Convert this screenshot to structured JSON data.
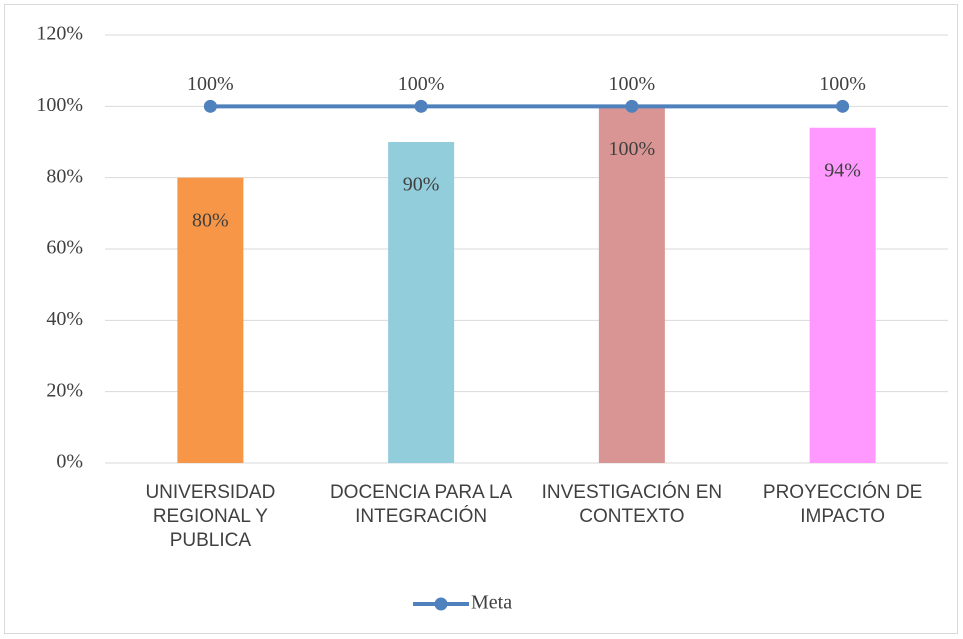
{
  "chart_data": {
    "type": "bar",
    "categories": [
      "UNIVERSIDAD REGIONAL Y PUBLICA",
      "DOCENCIA PARA LA INTEGRACIÓN",
      "INVESTIGACIÓN EN CONTEXTO",
      "PROYECCIÓN DE IMPACTO"
    ],
    "series": [
      {
        "type": "bar",
        "colors": [
          "#f79646",
          "#92cddc",
          "#d99594",
          "#ff99ff"
        ],
        "values": [
          80,
          90,
          100,
          94
        ],
        "value_labels": [
          "80%",
          "90%",
          "100%",
          "94%"
        ]
      },
      {
        "type": "line",
        "name": "Meta",
        "color": "#4f81bd",
        "values": [
          100,
          100,
          100,
          100
        ],
        "value_labels": [
          "100%",
          "100%",
          "100%",
          "100%"
        ]
      }
    ],
    "ylim": [
      0,
      120
    ],
    "yticks": [
      {
        "value": 0,
        "label": "0%"
      },
      {
        "value": 20,
        "label": "20%"
      },
      {
        "value": 40,
        "label": "40%"
      },
      {
        "value": 60,
        "label": "60%"
      },
      {
        "value": 80,
        "label": "80%"
      },
      {
        "value": 100,
        "label": "100%"
      },
      {
        "value": 120,
        "label": "120%"
      }
    ],
    "grid": true,
    "legend": "bottom"
  }
}
